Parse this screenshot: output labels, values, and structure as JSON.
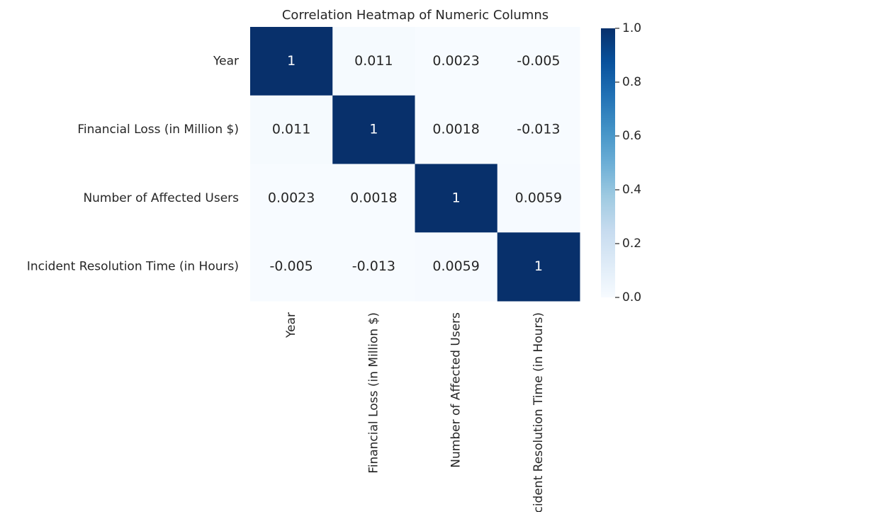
{
  "chart_data": {
    "type": "heatmap",
    "title": "Correlation Heatmap of Numeric Columns",
    "x_categories": [
      "Year",
      "Financial Loss (in Million $)",
      "Number of Affected Users",
      "Incident Resolution Time (in Hours)"
    ],
    "y_categories": [
      "Year",
      "Financial Loss (in Million $)",
      "Number of Affected Users",
      "Incident Resolution Time (in Hours)"
    ],
    "values": [
      [
        1,
        0.011,
        0.0023,
        -0.005
      ],
      [
        0.011,
        1,
        0.0018,
        -0.013
      ],
      [
        0.0023,
        0.0018,
        1,
        0.0059
      ],
      [
        -0.005,
        -0.013,
        0.0059,
        1
      ]
    ],
    "colormap": "Blues",
    "clim": [
      0,
      1
    ],
    "cticks": [
      {
        "value": 0,
        "label": "0.0"
      },
      0.2,
      0.4,
      0.6,
      0.8,
      {
        "value": 1,
        "label": "1.0"
      }
    ]
  }
}
